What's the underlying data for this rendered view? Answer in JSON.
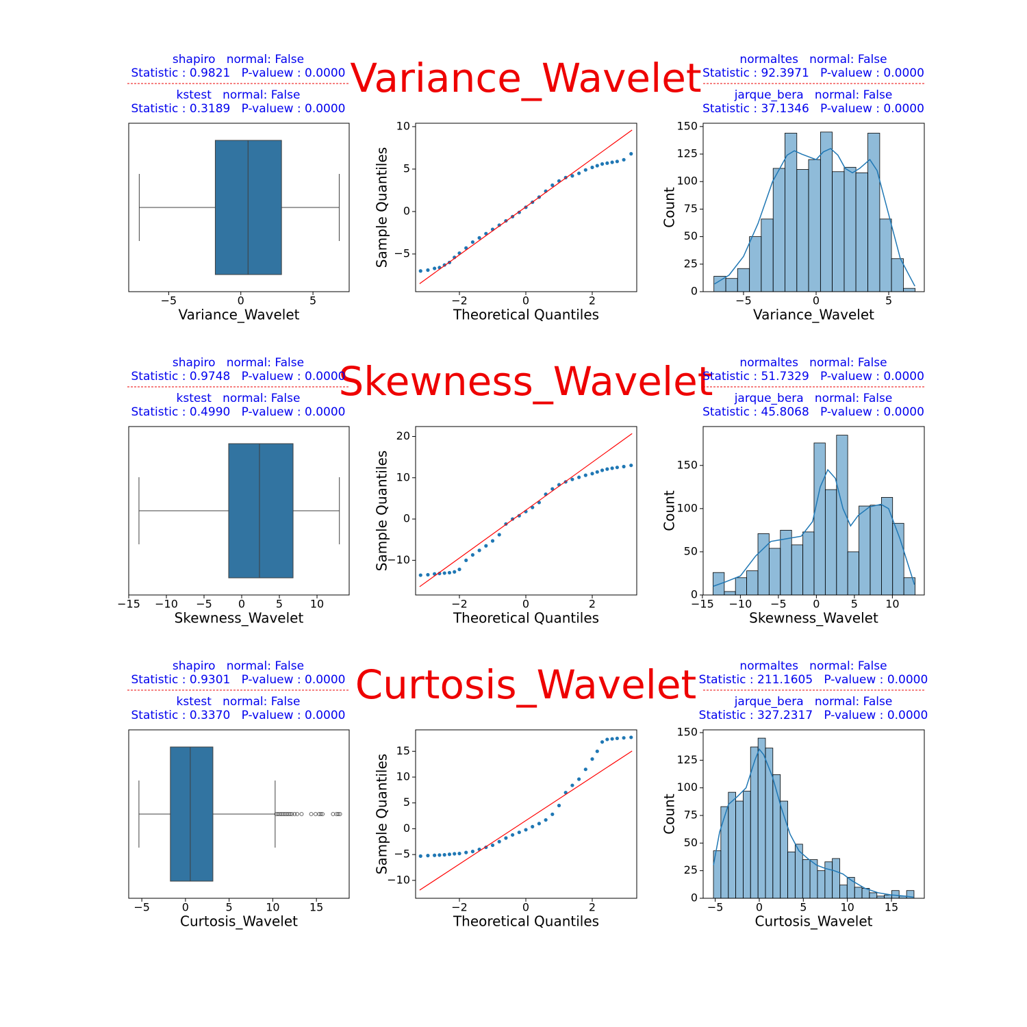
{
  "rows": [
    {
      "title": "Variance_Wavelet",
      "left": [
        {
          "head": "shapiro   normal: False",
          "stats": "Statistic : 0.9821   P-valuew : 0.0000"
        },
        {
          "head": "kstest   normal: False",
          "stats": "Statistic : 0.3189   P-valuew : 0.0000"
        }
      ],
      "right": [
        {
          "head": "normaltes   normal: False",
          "stats": "Statistic : 92.3971   P-valuew : 0.0000"
        },
        {
          "head": "jarque_bera   normal: False",
          "stats": "Statistic : 37.1346   P-valuew : 0.0000"
        }
      ]
    },
    {
      "title": "Skewness_Wavelet",
      "left": [
        {
          "head": "shapiro   normal: False",
          "stats": "Statistic : 0.9748   P-valuew : 0.0000"
        },
        {
          "head": "kstest   normal: False",
          "stats": "Statistic : 0.4990   P-valuew : 0.0000"
        }
      ],
      "right": [
        {
          "head": "normaltes   normal: False",
          "stats": "Statistic : 51.7329   P-valuew : 0.0000"
        },
        {
          "head": "jarque_bera   normal: False",
          "stats": "Statistic : 45.8068   P-valuew : 0.0000"
        }
      ]
    },
    {
      "title": "Curtosis_Wavelet",
      "left": [
        {
          "head": "shapiro   normal: False",
          "stats": "Statistic : 0.9301   P-valuew : 0.0000"
        },
        {
          "head": "kstest   normal: False",
          "stats": "Statistic : 0.3370   P-valuew : 0.0000"
        }
      ],
      "right": [
        {
          "head": "normaltes   normal: False",
          "stats": "Statistic : 211.1605   P-valuew : 0.0000"
        },
        {
          "head": "jarque_bera   normal: False",
          "stats": "Statistic : 327.2317   P-valuew : 0.0000"
        }
      ]
    }
  ],
  "chart_data": [
    {
      "type": "box",
      "xlabel": "Variance_Wavelet",
      "whisker_low": -7.04,
      "q1": -1.77,
      "median": 0.5,
      "q3": 2.82,
      "whisker_high": 6.82,
      "color": "#3274a1",
      "xlim": [
        -7.77,
        7.51
      ],
      "xticks": [
        {
          "value": -5,
          "label": "−5"
        },
        0,
        5
      ]
    },
    {
      "type": "qq",
      "xlabel": "Theoretical Quantiles",
      "ylabel": "Sample Quantiles",
      "color": "#1f77b4",
      "x": [
        -3.17,
        -2.95,
        -2.75,
        -2.6,
        -2.45,
        -2.3,
        -2.15,
        -2.0,
        -1.8,
        -1.6,
        -1.4,
        -1.2,
        -1.0,
        -0.8,
        -0.6,
        -0.4,
        -0.2,
        0,
        0.2,
        0.4,
        0.6,
        0.8,
        1.0,
        1.2,
        1.4,
        1.6,
        1.8,
        2.0,
        2.15,
        2.3,
        2.45,
        2.6,
        2.75,
        2.95,
        3.17
      ],
      "y": [
        -7.0,
        -6.9,
        -6.7,
        -6.6,
        -6.3,
        -6.0,
        -5.4,
        -4.9,
        -4.3,
        -3.6,
        -3.1,
        -2.6,
        -2.1,
        -1.6,
        -1.1,
        -0.6,
        -0.1,
        0.5,
        1.1,
        1.7,
        2.4,
        3.1,
        3.6,
        4.0,
        4.2,
        4.5,
        4.9,
        5.2,
        5.4,
        5.6,
        5.7,
        5.8,
        5.9,
        6.1,
        6.8
      ],
      "line": {
        "x": [
          -3.2,
          3.2
        ],
        "y": [
          -8.5,
          9.6
        ],
        "color": "red"
      },
      "xlim": [
        -3.32,
        3.34
      ],
      "ylim": [
        -9.44,
        10.4
      ],
      "xticks": [
        {
          "value": -2,
          "label": "−2"
        },
        0,
        2
      ],
      "yticks": [
        {
          "value": -5,
          "label": "−5"
        },
        0,
        5,
        10
      ]
    },
    {
      "type": "histogram",
      "xlabel": "Variance_Wavelet",
      "ylabel": "Count",
      "color": "#1f77b4",
      "bins": [
        -7.04,
        -6.22,
        -5.41,
        -4.59,
        -3.78,
        -2.96,
        -2.15,
        -1.33,
        -0.52,
        0.3,
        1.11,
        1.93,
        2.74,
        3.56,
        4.38,
        5.19,
        6.01,
        6.82
      ],
      "counts": [
        14,
        12,
        21,
        50,
        66,
        112,
        144,
        111,
        120,
        145,
        109,
        113,
        108,
        144,
        66,
        30,
        3
      ],
      "kde": {
        "x": [
          -7,
          -6,
          -5,
          -4,
          -3,
          -2,
          -1.5,
          -1,
          0,
          0.5,
          1,
          1.5,
          2,
          2.5,
          3,
          3.7,
          4.2,
          5,
          5.8,
          6.8
        ],
        "y": [
          7,
          15,
          32,
          62,
          100,
          124,
          128,
          125,
          120,
          127,
          130,
          124,
          112,
          108,
          112,
          120,
          110,
          70,
          30,
          5
        ]
      },
      "xlim": [
        -7.78,
        7.45
      ],
      "ylim": [
        0,
        153
      ],
      "xticks": [
        {
          "value": -5,
          "label": "−5"
        },
        0,
        5
      ],
      "yticks": [
        0,
        25,
        50,
        75,
        100,
        125,
        150
      ]
    },
    {
      "type": "box",
      "xlabel": "Skewness_Wavelet",
      "whisker_low": -13.64,
      "q1": -1.73,
      "median": 2.36,
      "q3": 6.82,
      "whisker_high": 12.97,
      "color": "#3274a1",
      "xlim": [
        -15.0,
        14.27
      ],
      "xticks": [
        {
          "value": -15,
          "label": "−15"
        },
        {
          "value": -10,
          "label": "−10"
        },
        {
          "value": -5,
          "label": "−5"
        },
        0,
        5,
        10
      ]
    },
    {
      "type": "qq",
      "xlabel": "Theoretical Quantiles",
      "ylabel": "Sample Quantiles",
      "color": "#1f77b4",
      "x": [
        -3.17,
        -2.95,
        -2.75,
        -2.6,
        -2.45,
        -2.3,
        -2.15,
        -2.0,
        -1.8,
        -1.6,
        -1.4,
        -1.2,
        -1.0,
        -0.8,
        -0.6,
        -0.4,
        -0.2,
        0,
        0.2,
        0.4,
        0.6,
        0.8,
        1.0,
        1.2,
        1.4,
        1.6,
        1.8,
        2.0,
        2.15,
        2.3,
        2.45,
        2.6,
        2.75,
        2.95,
        3.17
      ],
      "y": [
        -13.6,
        -13.5,
        -13.3,
        -13.2,
        -13.1,
        -13.0,
        -12.8,
        -12.2,
        -10.0,
        -8.7,
        -7.6,
        -6.5,
        -5.3,
        -3.8,
        -1.2,
        0.0,
        0.8,
        1.8,
        2.8,
        4.0,
        6.0,
        7.3,
        8.3,
        9.0,
        9.6,
        10.1,
        10.6,
        11.0,
        11.4,
        11.8,
        12.1,
        12.3,
        12.5,
        12.7,
        13.0
      ],
      "line": {
        "x": [
          -3.2,
          3.2
        ],
        "y": [
          -16.4,
          20.7
        ],
        "color": "red"
      },
      "xlim": [
        -3.32,
        3.34
      ],
      "ylim": [
        -18.4,
        22.4
      ],
      "xticks": [
        {
          "value": -2,
          "label": "−2"
        },
        0,
        2
      ],
      "yticks": [
        {
          "value": -10,
          "label": "−10"
        },
        0,
        10,
        20
      ]
    },
    {
      "type": "histogram",
      "xlabel": "Skewness_Wavelet",
      "ylabel": "Count",
      "color": "#1f77b4",
      "bins": [
        -13.6,
        -12.12,
        -10.65,
        -9.17,
        -7.69,
        -6.22,
        -4.74,
        -3.26,
        -1.78,
        -0.31,
        1.17,
        2.65,
        4.12,
        5.6,
        7.08,
        8.56,
        10.03,
        11.51,
        12.99
      ],
      "counts": [
        26,
        4,
        20,
        28,
        71,
        54,
        75,
        58,
        73,
        176,
        122,
        185,
        50,
        103,
        104,
        113,
        83,
        20
      ],
      "kde": {
        "x": [
          -13.6,
          -12,
          -10,
          -8,
          -6,
          -4,
          -2,
          -0.5,
          0.5,
          1.5,
          2.5,
          3.5,
          4.5,
          5.5,
          7,
          8.5,
          9.5,
          11,
          12.9
        ],
        "y": [
          10,
          15,
          22,
          45,
          62,
          65,
          68,
          85,
          125,
          145,
          135,
          100,
          80,
          92,
          102,
          105,
          100,
          65,
          12
        ]
      },
      "xlim": [
        -14.9,
        14.2
      ],
      "ylim": [
        0,
        195
      ],
      "xticks": [
        {
          "value": -15,
          "label": "−15"
        },
        {
          "value": -10,
          "label": "−10"
        },
        {
          "value": -5,
          "label": "−5"
        },
        0,
        5,
        10
      ],
      "yticks": [
        0,
        50,
        100,
        150
      ]
    },
    {
      "type": "box",
      "xlabel": "Curtosis_Wavelet",
      "whisker_low": -5.33,
      "q1": -1.73,
      "median": 0.55,
      "q3": 3.14,
      "whisker_high": 10.27,
      "color": "#3274a1",
      "outliers": [
        10.4,
        10.6,
        10.8,
        11.0,
        11.2,
        11.4,
        11.6,
        11.8,
        12.0,
        12.2,
        12.5,
        12.8,
        13.3,
        14.4,
        14.9,
        15.3,
        15.5,
        15.7,
        16.9,
        17.3,
        17.5,
        17.7
      ],
      "xlim": [
        -6.5,
        18.75
      ],
      "xticks": [
        {
          "value": -5,
          "label": "−5"
        },
        0,
        5,
        10,
        15
      ]
    },
    {
      "type": "qq",
      "xlabel": "Theoretical Quantiles",
      "ylabel": "Sample Quantiles",
      "color": "#1f77b4",
      "x": [
        -3.17,
        -2.95,
        -2.75,
        -2.6,
        -2.45,
        -2.3,
        -2.15,
        -2.0,
        -1.8,
        -1.6,
        -1.4,
        -1.2,
        -1.0,
        -0.8,
        -0.6,
        -0.4,
        -0.2,
        0,
        0.2,
        0.4,
        0.6,
        0.8,
        1.0,
        1.2,
        1.4,
        1.6,
        1.8,
        2.0,
        2.15,
        2.3,
        2.45,
        2.6,
        2.75,
        2.95,
        3.17
      ],
      "y": [
        -5.3,
        -5.2,
        -5.15,
        -5.1,
        -5.05,
        -4.95,
        -4.85,
        -4.8,
        -4.6,
        -4.4,
        -4.0,
        -3.6,
        -3.2,
        -2.5,
        -1.8,
        -1.2,
        -0.7,
        -0.2,
        0.4,
        1.0,
        1.7,
        2.8,
        4.5,
        7.0,
        8.4,
        9.6,
        11.5,
        13.5,
        15.0,
        16.8,
        17.3,
        17.4,
        17.5,
        17.6,
        17.7
      ],
      "line": {
        "x": [
          -3.2,
          3.2
        ],
        "y": [
          -11.9,
          15.06
        ],
        "color": "red"
      },
      "xlim": [
        -3.32,
        3.34
      ],
      "ylim": [
        -13.47,
        19.15
      ],
      "xticks": [
        {
          "value": -2,
          "label": "−2"
        },
        0,
        2
      ],
      "yticks": [
        {
          "value": -10,
          "label": "−10"
        },
        {
          "value": -5,
          "label": "−5"
        },
        0,
        5,
        10,
        15
      ]
    },
    {
      "type": "histogram",
      "xlabel": "Curtosis_Wavelet",
      "ylabel": "Count",
      "color": "#1f77b4",
      "bins": [
        -5.2,
        -4.36,
        -3.51,
        -2.67,
        -1.83,
        -0.99,
        -0.14,
        0.7,
        1.54,
        2.39,
        3.23,
        4.07,
        4.92,
        5.76,
        6.6,
        7.45,
        8.29,
        9.13,
        9.97,
        10.82,
        11.66,
        12.5,
        13.35,
        14.19,
        15.03,
        15.87,
        16.72,
        17.56
      ],
      "counts": [
        43,
        83,
        96,
        88,
        97,
        137,
        145,
        136,
        112,
        88,
        42,
        49,
        35,
        35,
        25,
        33,
        36,
        12,
        19,
        10,
        9,
        5,
        2,
        3,
        7,
        2,
        7
      ],
      "kde": {
        "x": [
          -5.2,
          -4.5,
          -3.5,
          -2.5,
          -1.5,
          -0.5,
          0,
          0.5,
          1.5,
          2.5,
          3.5,
          4.5,
          5.5,
          6.5,
          7.5,
          8.5,
          9.5,
          10.5,
          12,
          13.5,
          15,
          16.5,
          17.5
        ],
        "y": [
          30,
          60,
          85,
          92,
          100,
          125,
          135,
          130,
          110,
          82,
          58,
          43,
          36,
          30,
          27,
          25,
          22,
          16,
          9,
          5,
          3,
          2,
          1
        ]
      },
      "xlim": [
        -6.37,
        18.73
      ],
      "ylim": [
        0,
        152.5
      ],
      "xticks": [
        {
          "value": -5,
          "label": "−5"
        },
        0,
        5,
        10,
        15
      ],
      "yticks": [
        0,
        25,
        50,
        75,
        100,
        125,
        150
      ]
    }
  ]
}
